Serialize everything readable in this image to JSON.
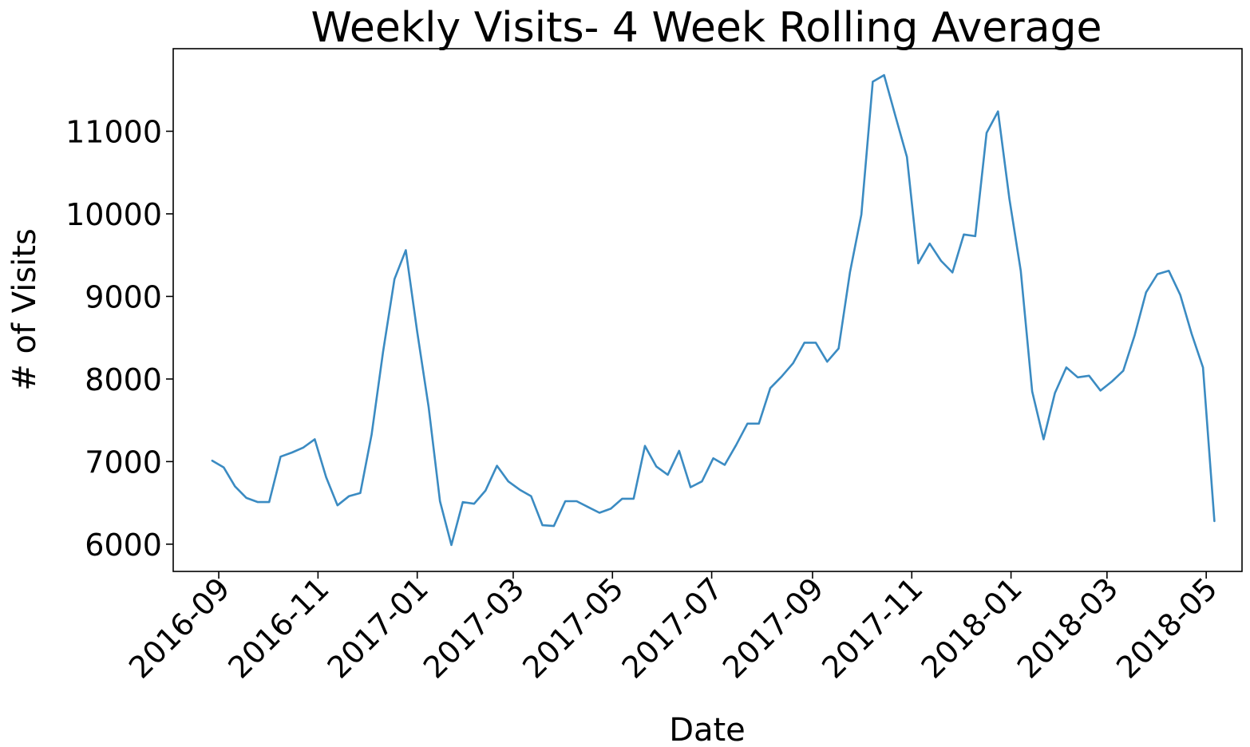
{
  "chart_data": {
    "type": "line",
    "title": "Weekly Visits- 4 Week Rolling Average",
    "xlabel": "Date",
    "ylabel": "# of Visits",
    "xlim": [
      "2016-08-04",
      "2018-05-23"
    ],
    "ylim": [
      5670,
      12000
    ],
    "x_ticks": [
      "2016-09",
      "2016-11",
      "2017-01",
      "2017-03",
      "2017-05",
      "2017-07",
      "2017-09",
      "2017-11",
      "2018-01",
      "2018-03",
      "2018-05"
    ],
    "y_ticks": [
      "6000",
      "7000",
      "8000",
      "9000",
      "10000",
      "11000"
    ],
    "grid": false,
    "color": "#3b8bc2",
    "series": [
      {
        "x": [
          "2016-08-28",
          "2016-09-04",
          "2016-09-11",
          "2016-09-18",
          "2016-09-25",
          "2016-10-02",
          "2016-10-09",
          "2016-10-16",
          "2016-10-23",
          "2016-10-30",
          "2016-11-06",
          "2016-11-13",
          "2016-11-20",
          "2016-11-27",
          "2016-12-04",
          "2016-12-11",
          "2016-12-18",
          "2016-12-25",
          "2017-01-01",
          "2017-01-08",
          "2017-01-15",
          "2017-01-22",
          "2017-01-29",
          "2017-02-05",
          "2017-02-12",
          "2017-02-19",
          "2017-02-26",
          "2017-03-05",
          "2017-03-12",
          "2017-03-19",
          "2017-03-26",
          "2017-04-02",
          "2017-04-09",
          "2017-04-16",
          "2017-04-23",
          "2017-04-30",
          "2017-05-07",
          "2017-05-14",
          "2017-05-21",
          "2017-05-28",
          "2017-06-04",
          "2017-06-11",
          "2017-06-18",
          "2017-06-25",
          "2017-07-02",
          "2017-07-09",
          "2017-07-16",
          "2017-07-23",
          "2017-07-30",
          "2017-08-06",
          "2017-08-13",
          "2017-08-20",
          "2017-08-27",
          "2017-09-03",
          "2017-09-10",
          "2017-09-17",
          "2017-09-24",
          "2017-10-01",
          "2017-10-08",
          "2017-10-15",
          "2017-10-22",
          "2017-10-29",
          "2017-11-05",
          "2017-11-12",
          "2017-11-19",
          "2017-11-26",
          "2017-12-03",
          "2017-12-10",
          "2017-12-17",
          "2017-12-24",
          "2017-12-31",
          "2018-01-07",
          "2018-01-14",
          "2018-01-21",
          "2018-01-28",
          "2018-02-04",
          "2018-02-11",
          "2018-02-18",
          "2018-02-25",
          "2018-03-04",
          "2018-03-11",
          "2018-03-18",
          "2018-03-25",
          "2018-04-01",
          "2018-04-08",
          "2018-04-15",
          "2018-04-22",
          "2018-04-29",
          "2018-05-06"
        ],
        "values": [
          7010,
          6930,
          6700,
          6560,
          6510,
          6510,
          7060,
          7110,
          7170,
          7270,
          6810,
          6470,
          6580,
          6620,
          7330,
          8330,
          9210,
          9560,
          8570,
          7660,
          6520,
          5990,
          6510,
          6490,
          6650,
          6950,
          6760,
          6660,
          6580,
          6230,
          6220,
          6520,
          6520,
          6450,
          6380,
          6430,
          6550,
          6550,
          7190,
          6940,
          6840,
          7130,
          6690,
          6760,
          7040,
          6960,
          7200,
          7460,
          7460,
          7890,
          8030,
          8190,
          8440,
          8440,
          8210,
          8370,
          9290,
          9990,
          11600,
          11680,
          11180,
          10690,
          9400,
          9640,
          9430,
          9290,
          9750,
          9730,
          10980,
          11240,
          10180,
          9310,
          7850,
          7270,
          7830,
          8140,
          8020,
          8040,
          7860,
          7970,
          8100,
          8530,
          9050,
          9270,
          9310,
          9020,
          8550,
          8140,
          6280
        ]
      }
    ]
  }
}
